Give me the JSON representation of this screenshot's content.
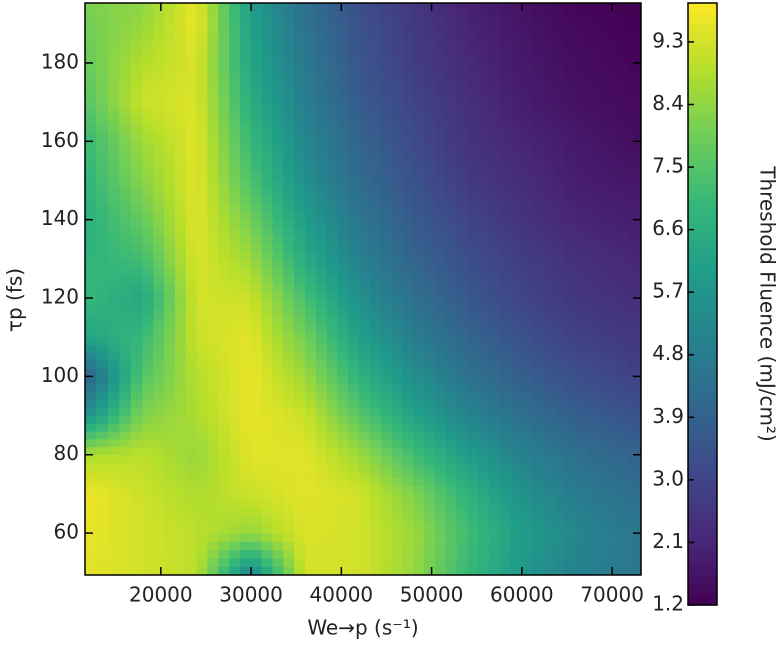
{
  "chart_data": {
    "type": "contour",
    "xlabel": "We→p (s⁻¹)",
    "ylabel": "τp (fs)",
    "colorbar_label": "Threshold Fluence (mJ/cm²)",
    "colormap": "viridis",
    "xlim": [
      11600,
      73200
    ],
    "ylim": [
      49.3,
      195.3
    ],
    "xticks": [
      20000,
      30000,
      40000,
      50000,
      60000,
      70000
    ],
    "yticks": [
      60,
      80,
      100,
      120,
      140,
      160,
      180
    ],
    "clim": [
      1.2,
      9.86
    ],
    "cticks": [
      1.2,
      2.1,
      {
        "value": 3,
        "label": "3.0"
      },
      3.9,
      4.8,
      5.7,
      6.6,
      7.5,
      8.4,
      9.3
    ],
    "x": [
      11600,
      18000,
      24000,
      30000,
      36000,
      42000,
      48000,
      54000,
      60000,
      66000,
      73200
    ],
    "y": [
      49.3,
      60,
      70,
      80,
      90,
      100,
      110,
      120,
      130,
      140,
      150,
      160,
      170,
      180,
      190,
      195.3
    ],
    "z": [
      [
        9.5,
        9.3,
        9.0,
        5.0,
        9.3,
        9.3,
        8.5,
        7.0,
        5.8,
        5.0,
        4.6
      ],
      [
        9.6,
        9.3,
        9.0,
        8.5,
        9.4,
        9.3,
        8.6,
        7.2,
        6.0,
        5.2,
        4.6
      ],
      [
        9.7,
        9.2,
        8.8,
        9.2,
        9.5,
        9.3,
        8.2,
        6.8,
        5.6,
        4.8,
        4.3
      ],
      [
        8.8,
        9.0,
        8.5,
        9.5,
        9.5,
        8.6,
        7.2,
        6.0,
        5.0,
        4.4,
        3.9
      ],
      [
        5.5,
        8.2,
        8.8,
        9.6,
        9.2,
        7.6,
        6.2,
        5.1,
        4.4,
        3.8,
        3.4
      ],
      [
        3.8,
        7.5,
        8.9,
        9.6,
        8.6,
        6.8,
        5.5,
        4.5,
        3.8,
        3.3,
        2.9
      ],
      [
        6.2,
        7.0,
        9.2,
        9.5,
        8.0,
        6.1,
        4.9,
        4.0,
        3.4,
        2.9,
        2.6
      ],
      [
        7.0,
        6.3,
        9.3,
        9.2,
        7.3,
        5.5,
        4.4,
        3.6,
        3.0,
        2.6,
        2.3
      ],
      [
        6.8,
        7.2,
        9.4,
        8.6,
        6.5,
        5.0,
        4.0,
        3.3,
        2.8,
        2.4,
        2.1
      ],
      [
        6.6,
        7.8,
        9.5,
        8.0,
        6.0,
        4.6,
        3.7,
        3.0,
        2.5,
        2.1,
        1.9
      ],
      [
        6.8,
        8.3,
        9.5,
        7.4,
        5.5,
        4.2,
        3.4,
        2.7,
        2.3,
        1.9,
        1.7
      ],
      [
        7.0,
        8.6,
        9.5,
        7.0,
        5.2,
        4.0,
        3.2,
        2.5,
        2.1,
        1.8,
        1.5
      ],
      [
        7.5,
        9.2,
        9.4,
        6.6,
        4.9,
        3.7,
        3.0,
        2.4,
        1.9,
        1.6,
        1.4
      ],
      [
        7.8,
        8.9,
        9.4,
        6.3,
        4.7,
        3.5,
        2.8,
        2.2,
        1.8,
        1.5,
        1.3
      ],
      [
        8.0,
        8.5,
        9.6,
        6.1,
        4.5,
        3.4,
        2.7,
        2.1,
        1.7,
        1.4,
        1.2
      ],
      [
        8.1,
        8.4,
        9.6,
        6.0,
        4.4,
        3.3,
        2.6,
        2.0,
        1.6,
        1.3,
        1.2
      ]
    ]
  }
}
